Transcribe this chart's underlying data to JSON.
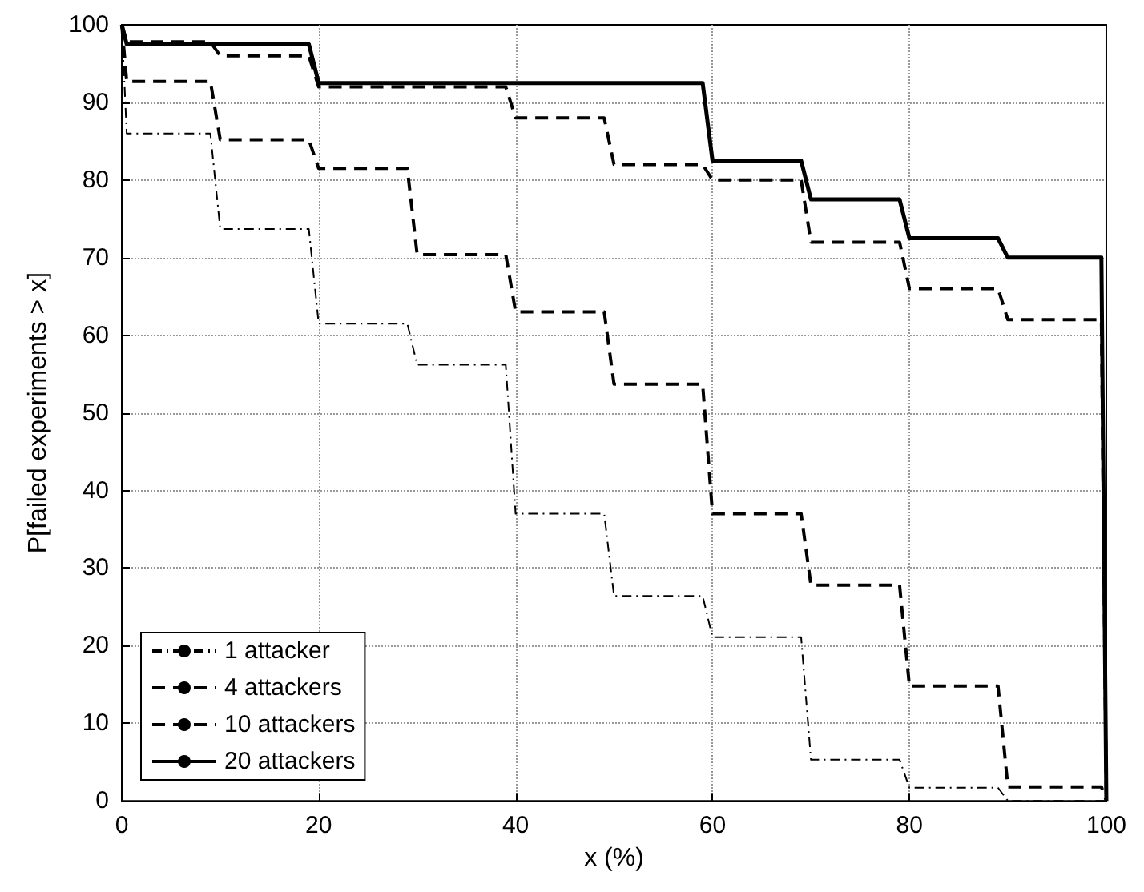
{
  "chart_data": {
    "type": "line",
    "xlabel": "x (%)",
    "ylabel": "P[failed experiments > x]",
    "xlim": [
      0,
      100
    ],
    "ylim": [
      0,
      100
    ],
    "xticks": [
      0,
      20,
      40,
      60,
      80,
      100
    ],
    "yticks": [
      0,
      10,
      20,
      30,
      40,
      50,
      60,
      70,
      80,
      90,
      100
    ],
    "grid": true,
    "legend": "bottom left",
    "marker": "none",
    "series": [
      {
        "name": "1 attacker",
        "color": "#000000",
        "line_style": "dotted",
        "x": [
          0,
          0.5,
          9,
          10,
          19,
          20,
          29,
          30,
          39,
          40,
          49,
          50,
          59,
          60,
          69,
          70,
          79,
          80,
          89,
          90,
          100
        ],
        "values": [
          100,
          86,
          86,
          73.7,
          73.7,
          61.5,
          61.5,
          56.2,
          56.2,
          37,
          37,
          26.4,
          26.4,
          21.1,
          21.1,
          5.3,
          5.3,
          1.7,
          1.7,
          0,
          0
        ]
      },
      {
        "name": "4 attackers",
        "color": "#000000",
        "line_style": "dashed",
        "x": [
          0,
          0.5,
          9,
          10,
          19,
          20,
          29,
          30,
          39,
          40,
          49,
          50,
          59,
          60,
          69,
          70,
          79,
          80,
          89,
          90,
          99.5,
          100
        ],
        "values": [
          100,
          92.7,
          92.7,
          85.2,
          85.2,
          81.5,
          81.5,
          70.4,
          70.4,
          63,
          63,
          53.7,
          53.7,
          37,
          37,
          27.8,
          27.8,
          14.8,
          14.8,
          1.8,
          1.8,
          0
        ]
      },
      {
        "name": "10 attackers",
        "color": "#000000",
        "line_style": "dashed",
        "x": [
          0,
          0.5,
          9,
          10,
          19,
          20,
          39,
          40,
          49,
          50,
          59,
          60,
          69,
          70,
          79,
          80,
          89,
          90,
          99.5,
          100
        ],
        "values": [
          100,
          97.8,
          97.8,
          96,
          96,
          92,
          92,
          88,
          88,
          82,
          82,
          80,
          80,
          72,
          72,
          66,
          66,
          62,
          62,
          0
        ]
      },
      {
        "name": "20 attackers",
        "color": "#000000",
        "line_style": "solid",
        "x": [
          0,
          0.5,
          19,
          20,
          59,
          60,
          69,
          70,
          79,
          80,
          89,
          90,
          99.5,
          100
        ],
        "values": [
          100,
          97.5,
          97.5,
          92.5,
          92.5,
          82.5,
          82.5,
          77.5,
          77.5,
          72.5,
          72.5,
          70,
          70,
          0
        ]
      }
    ]
  }
}
